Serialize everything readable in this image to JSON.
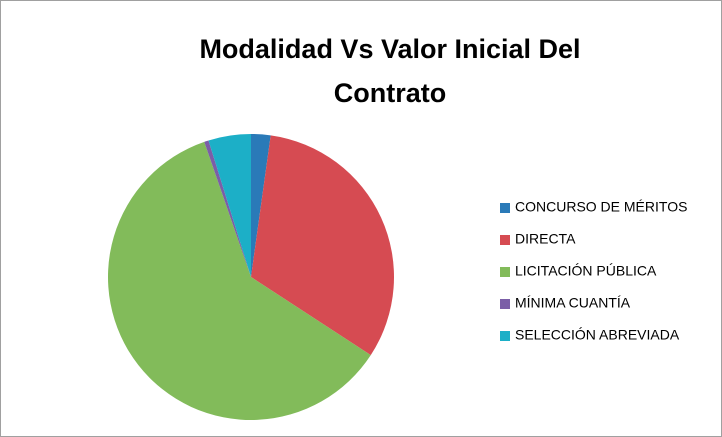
{
  "chart_data": {
    "type": "pie",
    "title": [
      "Modalidad Vs Valor Inicial Del",
      "Contrato"
    ],
    "categories": [
      "CONCURSO DE MÉRITOS",
      "DIRECTA",
      "LICITACIÓN PÚBLICA",
      "MÍNIMA CUANTÍA",
      "SELECCIÓN ABREVIADA"
    ],
    "values": [
      2.2,
      32,
      60.5,
      0.5,
      4.8
    ],
    "colors": [
      "#2a7ab8",
      "#d64b52",
      "#82bb5a",
      "#7b5ea7",
      "#1cafc7"
    ],
    "legend": "right"
  }
}
